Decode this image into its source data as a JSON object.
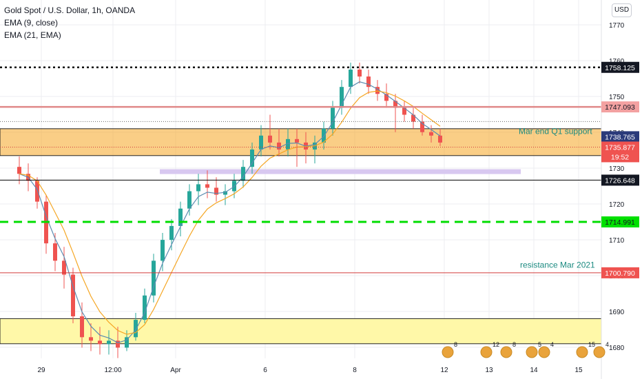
{
  "legend": {
    "title": "Gold Spot / U.S. Dollar, 1h, OANDA",
    "ema9": "EMA (9, close)",
    "ema21": "EMA (21, EMA)"
  },
  "currency_button": "USD",
  "colors": {
    "up": "#26a69a",
    "down": "#ef5350",
    "ema9": "#5b8bb0",
    "ema21": "#f5a623",
    "grid": "#eceef2",
    "axis_text": "#131722",
    "orange_zone": "#f5a623",
    "yellow_zone": "#fff8a8",
    "lavender": "#d8c8f0",
    "green_line": "#00dd00",
    "pink_line": "#e08888",
    "red_line": "#d23a3a",
    "annotation": "#1b8a80"
  },
  "chart_data": {
    "type": "candlestick",
    "title": "Gold Spot / U.S. Dollar, 1h, OANDA",
    "currency": "USD",
    "ylim": [
      1677,
      1774
    ],
    "y_ticks": [
      1680,
      1690,
      1700,
      1710,
      1720,
      1730,
      1740,
      1750,
      1760,
      1770
    ],
    "x_ticks": [
      "29",
      "12:00",
      "Apr",
      "6",
      "8",
      "12",
      "13",
      "14",
      "15"
    ],
    "x_tick_index": [
      2,
      10,
      17,
      27,
      37,
      47,
      52,
      57,
      62
    ],
    "last_price": 1735.877,
    "countdown": "19:52",
    "ohlc_normalized": [
      [
        0.55,
        0.58,
        0.5,
        0.53
      ],
      [
        0.53,
        0.56,
        0.48,
        0.51
      ],
      [
        0.51,
        0.52,
        0.43,
        0.45
      ],
      [
        0.45,
        0.47,
        0.3,
        0.33
      ],
      [
        0.33,
        0.36,
        0.25,
        0.28
      ],
      [
        0.28,
        0.32,
        0.2,
        0.24
      ],
      [
        0.24,
        0.26,
        0.1,
        0.12
      ],
      [
        0.12,
        0.16,
        0.03,
        0.06
      ],
      [
        0.06,
        0.1,
        0.02,
        0.05
      ],
      [
        0.05,
        0.09,
        0.01,
        0.04
      ],
      [
        0.04,
        0.08,
        0.01,
        0.05
      ],
      [
        0.05,
        0.09,
        0.0,
        0.03
      ],
      [
        0.03,
        0.08,
        0.02,
        0.06
      ],
      [
        0.06,
        0.13,
        0.05,
        0.11
      ],
      [
        0.11,
        0.2,
        0.1,
        0.18
      ],
      [
        0.18,
        0.3,
        0.16,
        0.28
      ],
      [
        0.28,
        0.36,
        0.25,
        0.34
      ],
      [
        0.34,
        0.4,
        0.31,
        0.38
      ],
      [
        0.38,
        0.45,
        0.35,
        0.43
      ],
      [
        0.43,
        0.5,
        0.41,
        0.48
      ],
      [
        0.48,
        0.53,
        0.44,
        0.5
      ],
      [
        0.5,
        0.54,
        0.46,
        0.49
      ],
      [
        0.49,
        0.52,
        0.45,
        0.47
      ],
      [
        0.47,
        0.5,
        0.44,
        0.48
      ],
      [
        0.48,
        0.53,
        0.46,
        0.51
      ],
      [
        0.51,
        0.57,
        0.49,
        0.55
      ],
      [
        0.55,
        0.62,
        0.53,
        0.6
      ],
      [
        0.6,
        0.67,
        0.58,
        0.64
      ],
      [
        0.64,
        0.7,
        0.6,
        0.62
      ],
      [
        0.62,
        0.66,
        0.58,
        0.6
      ],
      [
        0.6,
        0.66,
        0.58,
        0.63
      ],
      [
        0.63,
        0.66,
        0.55,
        0.62
      ],
      [
        0.62,
        0.65,
        0.56,
        0.6
      ],
      [
        0.6,
        0.64,
        0.56,
        0.62
      ],
      [
        0.62,
        0.68,
        0.6,
        0.66
      ],
      [
        0.66,
        0.74,
        0.64,
        0.72
      ],
      [
        0.72,
        0.8,
        0.7,
        0.78
      ],
      [
        0.78,
        0.85,
        0.76,
        0.83
      ],
      [
        0.83,
        0.85,
        0.79,
        0.81
      ],
      [
        0.81,
        0.83,
        0.76,
        0.78
      ],
      [
        0.78,
        0.8,
        0.74,
        0.76
      ],
      [
        0.76,
        0.79,
        0.72,
        0.74
      ],
      [
        0.74,
        0.76,
        0.65,
        0.72
      ],
      [
        0.72,
        0.74,
        0.68,
        0.7
      ],
      [
        0.7,
        0.72,
        0.66,
        0.68
      ],
      [
        0.68,
        0.7,
        0.64,
        0.65
      ],
      [
        0.65,
        0.67,
        0.62,
        0.64
      ],
      [
        0.64,
        0.66,
        0.61,
        0.62
      ]
    ]
  },
  "price_labels": [
    {
      "text": "1758.125",
      "style": "black"
    },
    {
      "text": "1747.093",
      "style": "pink"
    },
    {
      "text": "1738.765",
      "style": "navy"
    },
    {
      "text": "1735.877",
      "style": "red"
    },
    {
      "text": "19:52",
      "style": "red"
    },
    {
      "text": "1726.648",
      "style": "black"
    },
    {
      "text": "1714.991",
      "style": "green"
    },
    {
      "text": "1700.790",
      "style": "red"
    }
  ],
  "annotations": [
    {
      "text": "Mar end Q1 support"
    },
    {
      "text": "resistance  Mar 2021"
    }
  ],
  "event_badges": [
    {
      "count": "8"
    },
    {
      "count": "12"
    },
    {
      "count": "8"
    },
    {
      "count": "5"
    },
    {
      "count": "4"
    },
    {
      "count": "15"
    },
    {
      "count": "4"
    }
  ]
}
